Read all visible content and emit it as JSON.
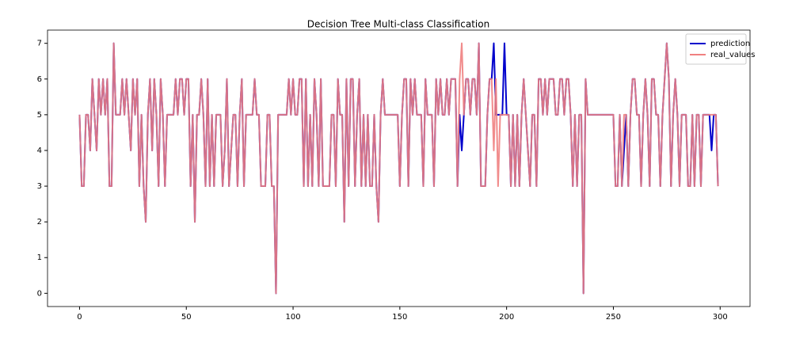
{
  "chart_data": {
    "type": "line",
    "title": "Decision Tree Multi-class Classification",
    "x": [
      0,
      1,
      2,
      3,
      4,
      5,
      6,
      7,
      8,
      9,
      10,
      11,
      12,
      13,
      14,
      15,
      16,
      17,
      18,
      19,
      20,
      21,
      22,
      23,
      24,
      25,
      26,
      27,
      28,
      29,
      30,
      31,
      32,
      33,
      34,
      35,
      36,
      37,
      38,
      39,
      40,
      41,
      42,
      43,
      44,
      45,
      46,
      47,
      48,
      49,
      50,
      51,
      52,
      53,
      54,
      55,
      56,
      57,
      58,
      59,
      60,
      61,
      62,
      63,
      64,
      65,
      66,
      67,
      68,
      69,
      70,
      71,
      72,
      73,
      74,
      75,
      76,
      77,
      78,
      79,
      80,
      81,
      82,
      83,
      84,
      85,
      86,
      87,
      88,
      89,
      90,
      91,
      92,
      93,
      94,
      95,
      96,
      97,
      98,
      99,
      100,
      101,
      102,
      103,
      104,
      105,
      106,
      107,
      108,
      109,
      110,
      111,
      112,
      113,
      114,
      115,
      116,
      117,
      118,
      119,
      120,
      121,
      122,
      123,
      124,
      125,
      126,
      127,
      128,
      129,
      130,
      131,
      132,
      133,
      134,
      135,
      136,
      137,
      138,
      139,
      140,
      141,
      142,
      143,
      144,
      145,
      146,
      147,
      148,
      149,
      150,
      151,
      152,
      153,
      154,
      155,
      156,
      157,
      158,
      159,
      160,
      161,
      162,
      163,
      164,
      165,
      166,
      167,
      168,
      169,
      170,
      171,
      172,
      173,
      174,
      175,
      176,
      177,
      178,
      179,
      180,
      181,
      182,
      183,
      184,
      185,
      186,
      187,
      188,
      189,
      190,
      191,
      192,
      193,
      194,
      195,
      196,
      197,
      198,
      199,
      200,
      201,
      202,
      203,
      204,
      205,
      206,
      207,
      208,
      209,
      210,
      211,
      212,
      213,
      214,
      215,
      216,
      217,
      218,
      219,
      220,
      221,
      222,
      223,
      224,
      225,
      226,
      227,
      228,
      229,
      230,
      231,
      232,
      233,
      234,
      235,
      236,
      237,
      238,
      239,
      240,
      241,
      242,
      243,
      244,
      245,
      246,
      247,
      248,
      249,
      250,
      251,
      252,
      253,
      254,
      255,
      256,
      257,
      258,
      259,
      260,
      261,
      262,
      263,
      264,
      265,
      266,
      267,
      268,
      269,
      270,
      271,
      272,
      273,
      274,
      275,
      276,
      277,
      278,
      279,
      280,
      281,
      282,
      283,
      284,
      285,
      286,
      287,
      288,
      289,
      290,
      291,
      292,
      293,
      294,
      295,
      296,
      297,
      298,
      299
    ],
    "series": [
      {
        "name": "prediction",
        "color": "#0000cc",
        "values": [
          5,
          3,
          3,
          5,
          5,
          4,
          6,
          5,
          4,
          6,
          5,
          6,
          5,
          6,
          3,
          3,
          7,
          5,
          5,
          5,
          6,
          5,
          6,
          5,
          4,
          6,
          5,
          6,
          3,
          5,
          3,
          2,
          5,
          6,
          4,
          6,
          5,
          3,
          6,
          5,
          3,
          5,
          5,
          5,
          5,
          6,
          5,
          6,
          6,
          5,
          6,
          6,
          3,
          5,
          2,
          5,
          5,
          6,
          5,
          3,
          6,
          3,
          5,
          3,
          5,
          5,
          5,
          3,
          4,
          6,
          3,
          4,
          5,
          5,
          3,
          5,
          6,
          3,
          5,
          5,
          5,
          5,
          6,
          5,
          5,
          3,
          3,
          3,
          5,
          5,
          3,
          3,
          0,
          5,
          5,
          5,
          5,
          5,
          6,
          5,
          6,
          5,
          5,
          6,
          6,
          3,
          6,
          3,
          5,
          3,
          6,
          5,
          3,
          6,
          3,
          3,
          3,
          3,
          5,
          5,
          3,
          6,
          5,
          5,
          2,
          6,
          3,
          6,
          6,
          3,
          5,
          6,
          3,
          5,
          3,
          5,
          3,
          3,
          5,
          3,
          2,
          5,
          6,
          5,
          5,
          5,
          5,
          5,
          5,
          5,
          3,
          5,
          6,
          6,
          3,
          6,
          5,
          6,
          5,
          5,
          5,
          3,
          6,
          5,
          5,
          5,
          3,
          6,
          5,
          6,
          5,
          5,
          6,
          5,
          6,
          6,
          6,
          3,
          5,
          4,
          5,
          6,
          6,
          5,
          6,
          6,
          5,
          7,
          3,
          3,
          3,
          5,
          6,
          6,
          7,
          5,
          5,
          5,
          5,
          7,
          5,
          5,
          3,
          5,
          3,
          5,
          3,
          5,
          6,
          5,
          4,
          3,
          5,
          5,
          3,
          6,
          6,
          5,
          6,
          5,
          6,
          6,
          6,
          5,
          5,
          6,
          6,
          5,
          6,
          6,
          5,
          3,
          5,
          3,
          5,
          5,
          0,
          6,
          5,
          5,
          5,
          5,
          5,
          5,
          5,
          5,
          5,
          5,
          5,
          5,
          5,
          3,
          3,
          5,
          3,
          4,
          5,
          3,
          5,
          6,
          6,
          5,
          5,
          3,
          5,
          6,
          5,
          3,
          6,
          6,
          5,
          5,
          3,
          5,
          6,
          7,
          6,
          3,
          5,
          6,
          5,
          3,
          5,
          5,
          5,
          3,
          3,
          5,
          3,
          5,
          5,
          3,
          5,
          5,
          5,
          5,
          4,
          5,
          5,
          3
        ]
      },
      {
        "name": "real_values",
        "color": "#f08080",
        "values": [
          5,
          3,
          3,
          5,
          5,
          4,
          6,
          5,
          4,
          6,
          5,
          6,
          5,
          6,
          3,
          3,
          7,
          5,
          5,
          5,
          6,
          5,
          6,
          5,
          4,
          6,
          5,
          6,
          3,
          5,
          3,
          2,
          5,
          6,
          4,
          6,
          5,
          3,
          6,
          5,
          3,
          5,
          5,
          5,
          5,
          6,
          5,
          6,
          6,
          5,
          6,
          6,
          3,
          5,
          2,
          5,
          5,
          6,
          5,
          3,
          6,
          3,
          5,
          3,
          5,
          5,
          5,
          3,
          4,
          6,
          3,
          4,
          5,
          5,
          3,
          5,
          6,
          3,
          5,
          5,
          5,
          5,
          6,
          5,
          5,
          3,
          3,
          3,
          5,
          5,
          3,
          3,
          0,
          5,
          5,
          5,
          5,
          5,
          6,
          5,
          6,
          5,
          5,
          6,
          6,
          3,
          6,
          3,
          5,
          3,
          6,
          5,
          3,
          6,
          3,
          3,
          3,
          3,
          5,
          5,
          3,
          6,
          5,
          5,
          2,
          6,
          3,
          6,
          6,
          3,
          5,
          6,
          3,
          5,
          3,
          5,
          3,
          3,
          5,
          3,
          2,
          5,
          6,
          5,
          5,
          5,
          5,
          5,
          5,
          5,
          3,
          5,
          6,
          6,
          3,
          6,
          5,
          6,
          5,
          5,
          5,
          3,
          6,
          5,
          5,
          5,
          3,
          6,
          5,
          6,
          5,
          5,
          6,
          5,
          6,
          6,
          6,
          3,
          6,
          7,
          5,
          6,
          6,
          5,
          6,
          6,
          5,
          7,
          3,
          3,
          3,
          5,
          6,
          6,
          4,
          6,
          3,
          5,
          5,
          5,
          5,
          5,
          3,
          5,
          3,
          5,
          3,
          5,
          6,
          5,
          4,
          3,
          5,
          5,
          3,
          6,
          6,
          5,
          6,
          5,
          6,
          6,
          6,
          5,
          5,
          6,
          6,
          5,
          6,
          6,
          5,
          3,
          5,
          3,
          5,
          5,
          0,
          6,
          5,
          5,
          5,
          5,
          5,
          5,
          5,
          5,
          5,
          5,
          5,
          5,
          5,
          3,
          3,
          5,
          3,
          5,
          5,
          3,
          5,
          6,
          6,
          5,
          5,
          3,
          5,
          6,
          5,
          3,
          6,
          6,
          5,
          5,
          3,
          5,
          6,
          7,
          6,
          3,
          5,
          6,
          5,
          3,
          5,
          5,
          5,
          3,
          3,
          5,
          3,
          5,
          5,
          3,
          5,
          5,
          5,
          5,
          5,
          5,
          5,
          3
        ]
      }
    ],
    "xlim": [
      -15,
      314
    ],
    "ylim": [
      -0.37,
      7.37
    ],
    "xticks": [
      0,
      50,
      100,
      150,
      200,
      250,
      300
    ],
    "yticks": [
      0,
      1,
      2,
      3,
      4,
      5,
      6,
      7
    ],
    "grid": false,
    "legend": "upper right"
  }
}
